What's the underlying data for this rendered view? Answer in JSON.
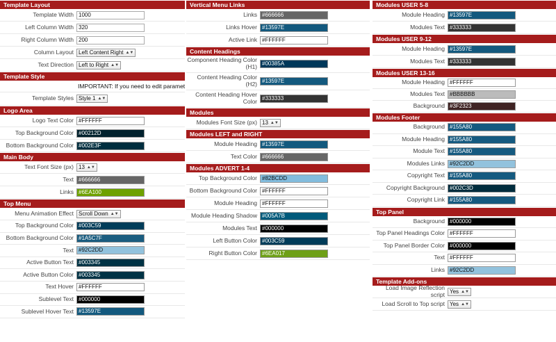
{
  "col1": {
    "template_layout": {
      "title": "Template Layout",
      "rows": [
        {
          "label": "Template Width",
          "value": "1000"
        },
        {
          "label": "Left Column Width",
          "value": "320"
        },
        {
          "label": "Right Column Width",
          "value": "200"
        }
      ],
      "column_layout": {
        "label": "Column Layout",
        "value": "Left Content Right"
      },
      "text_direction": {
        "label": "Text Direction",
        "value": "Left to Right"
      }
    },
    "template_style": {
      "title": "Template Style",
      "notice": "IMPORTANT: If you need to edit parameters",
      "styles": {
        "label": "Template Styles",
        "value": "Style 1"
      }
    },
    "logo_area": {
      "title": "Logo Area",
      "rows": [
        {
          "label": "Logo Text Color",
          "value": "#FFFFFF",
          "color": "#FFFFFF"
        },
        {
          "label": "Top Background Color",
          "value": "#00212D",
          "color": "#00212D"
        },
        {
          "label": "Bottom Background Color",
          "value": "#002E3F",
          "color": "#002E3F"
        }
      ]
    },
    "main_body": {
      "title": "Main Body",
      "font_size": {
        "label": "Text Font Size (px)",
        "value": "13"
      },
      "rows": [
        {
          "label": "Text",
          "value": "#666666",
          "color": "#666666"
        },
        {
          "label": "Links",
          "value": "#6EA100",
          "color": "#6EA100"
        }
      ]
    },
    "top_menu": {
      "title": "Top Menu",
      "animation": {
        "label": "Menu Animation Effect",
        "value": "Scroll Down"
      },
      "rows": [
        {
          "label": "Top Background Color",
          "value": "#003C59",
          "color": "#003C59"
        },
        {
          "label": "Bottom Background Color",
          "value": "#1A5C7F",
          "color": "#1A5C7F"
        },
        {
          "label": "Text",
          "value": "#92C2DD",
          "color": "#92C2DD"
        },
        {
          "label": "Active Button Text",
          "value": "#003345",
          "color": "#003345"
        },
        {
          "label": "Active Button Color",
          "value": "#003345",
          "color": "#003345"
        },
        {
          "label": "Text Hover",
          "value": "#FFFFFF",
          "color": "#FFFFFF"
        },
        {
          "label": "Sublevel Text",
          "value": "#000000",
          "color": "#000000"
        },
        {
          "label": "Sublevel Hover Text",
          "value": "#13597E",
          "color": "#13597E"
        }
      ]
    }
  },
  "col2": {
    "vertical_menu_links": {
      "title": "Vertical Menu Links",
      "rows": [
        {
          "label": "Links",
          "value": "#666666",
          "color": "#666666"
        },
        {
          "label": "Links Hover",
          "value": "#13597E",
          "color": "#13597E"
        },
        {
          "label": "Active Link",
          "value": "#FFFFFF",
          "color": "#FFFFFF"
        }
      ]
    },
    "content_headings": {
      "title": "Content Headings",
      "rows": [
        {
          "label": "Component Heading Color (H1)",
          "value": "#00385A",
          "color": "#00385A"
        },
        {
          "label": "Content Heading Color (H2)",
          "value": "#13597E",
          "color": "#13597E"
        },
        {
          "label": "Content Heading Hover Color",
          "value": "#333333",
          "color": "#333333"
        }
      ]
    },
    "modules": {
      "title": "Modules",
      "font_size": {
        "label": "Modules Font Size (px)",
        "value": "13"
      }
    },
    "modules_left_right": {
      "title": "Modules LEFT and RIGHT",
      "rows": [
        {
          "label": "Module Heading",
          "value": "#13597E",
          "color": "#13597E"
        },
        {
          "label": "Text Color",
          "value": "#666666",
          "color": "#666666"
        }
      ]
    },
    "modules_advert": {
      "title": "Modules ADVERT 1-4",
      "rows": [
        {
          "label": "Top Background Color",
          "value": "#82BCDD",
          "color": "#82BCDD"
        },
        {
          "label": "Bottom Background Color",
          "value": "#FFFFFF",
          "color": "#FFFFFF"
        },
        {
          "label": "Module Heading",
          "value": "#FFFFFF",
          "color": "#FFFFFF"
        },
        {
          "label": "Module Heading Shadow",
          "value": "#005A7B",
          "color": "#005A7B"
        },
        {
          "label": "Modules Text",
          "value": "#000000",
          "color": "#000000"
        },
        {
          "label": "Left Button Color",
          "value": "#003C59",
          "color": "#003C59"
        },
        {
          "label": "Right Button Color",
          "value": "#6EA017",
          "color": "#6EA017"
        }
      ]
    }
  },
  "col3": {
    "user_5_8": {
      "title": "Modules USER 5-8",
      "rows": [
        {
          "label": "Module Heading",
          "value": "#13597E",
          "color": "#13597E"
        },
        {
          "label": "Modules Text",
          "value": "#333333",
          "color": "#333333"
        }
      ]
    },
    "user_9_12": {
      "title": "Modules USER 9-12",
      "rows": [
        {
          "label": "Module Heading",
          "value": "#13597E",
          "color": "#13597E"
        },
        {
          "label": "Modules Text",
          "value": "#333333",
          "color": "#333333"
        }
      ]
    },
    "user_13_16": {
      "title": "Modules USER 13-16",
      "rows": [
        {
          "label": "Module Heading",
          "value": "#FFFFFF",
          "color": "#FFFFFF"
        },
        {
          "label": "Modules Text",
          "value": "#BBBBBB",
          "color": "#BBBBBB"
        },
        {
          "label": "Background",
          "value": "#3F2323",
          "color": "#3F2323"
        }
      ]
    },
    "footer": {
      "title": "Modules Footer",
      "rows": [
        {
          "label": "Background",
          "value": "#155A80",
          "color": "#155A80"
        },
        {
          "label": "Module Heading",
          "value": "#155A80",
          "color": "#155A80"
        },
        {
          "label": "Module Text",
          "value": "#155A80",
          "color": "#155A80"
        },
        {
          "label": "Modules Links",
          "value": "#92C2DD",
          "color": "#92C2DD"
        },
        {
          "label": "Copyright Text",
          "value": "#155A80",
          "color": "#155A80"
        },
        {
          "label": "Copyright Background",
          "value": "#002C3D",
          "color": "#002C3D"
        },
        {
          "label": "Copyright Link",
          "value": "#155A80",
          "color": "#155A80"
        }
      ]
    },
    "top_panel": {
      "title": "Top Panel",
      "rows": [
        {
          "label": "Background",
          "value": "#000000",
          "color": "#000000"
        },
        {
          "label": "Top Panel Headings Color",
          "value": "#FFFFFF",
          "color": "#FFFFFF"
        },
        {
          "label": "Top Panel Border Color",
          "value": "#000000",
          "color": "#000000"
        },
        {
          "label": "Text",
          "value": "#FFFFFF",
          "color": "#FFFFFF"
        },
        {
          "label": "Links",
          "value": "#92C2DD",
          "color": "#92C2DD"
        }
      ]
    },
    "addons": {
      "title": "Template Add-ons",
      "reflection": {
        "label": "Load Image Reflection script",
        "value": "Yes"
      },
      "scroll_top": {
        "label": "Load Scroll to Top script",
        "value": "Yes"
      }
    }
  }
}
